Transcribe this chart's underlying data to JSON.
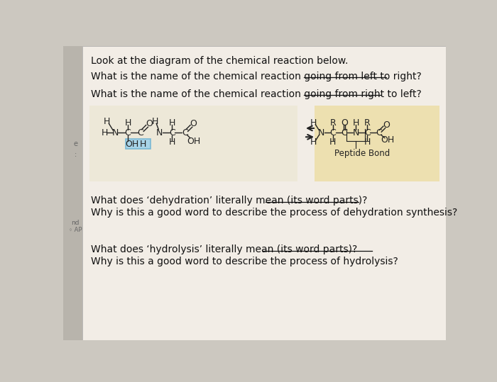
{
  "bg_color": "#ccc8c0",
  "page_bg": "#f2ede6",
  "title_text": "Look at the diagram of the chemical reaction below.",
  "q1_text": "What is the name of the chemical reaction going from left to right?",
  "q2_text": "What is the name of the chemical reaction going from right to left?",
  "q3_line1": "What does ‘dehydration’ literally mean (its word parts)?",
  "q3_line2": "Why is this a good word to describe the process of dehydration synthesis?",
  "q4_line1": "What does ‘hydrolysis’ literally mean (its word parts)?",
  "q4_line2": "Why is this a good word to describe the process of hydrolysis?",
  "left_bg": "#ede8d8",
  "right_bg": "#ede0b0",
  "peptide_bond_label": "Peptide Bond",
  "font_size_text": 10,
  "font_size_chem": 9,
  "oh_box_color": "#7ab8d4",
  "oh_box_face": "#a8d4e8"
}
